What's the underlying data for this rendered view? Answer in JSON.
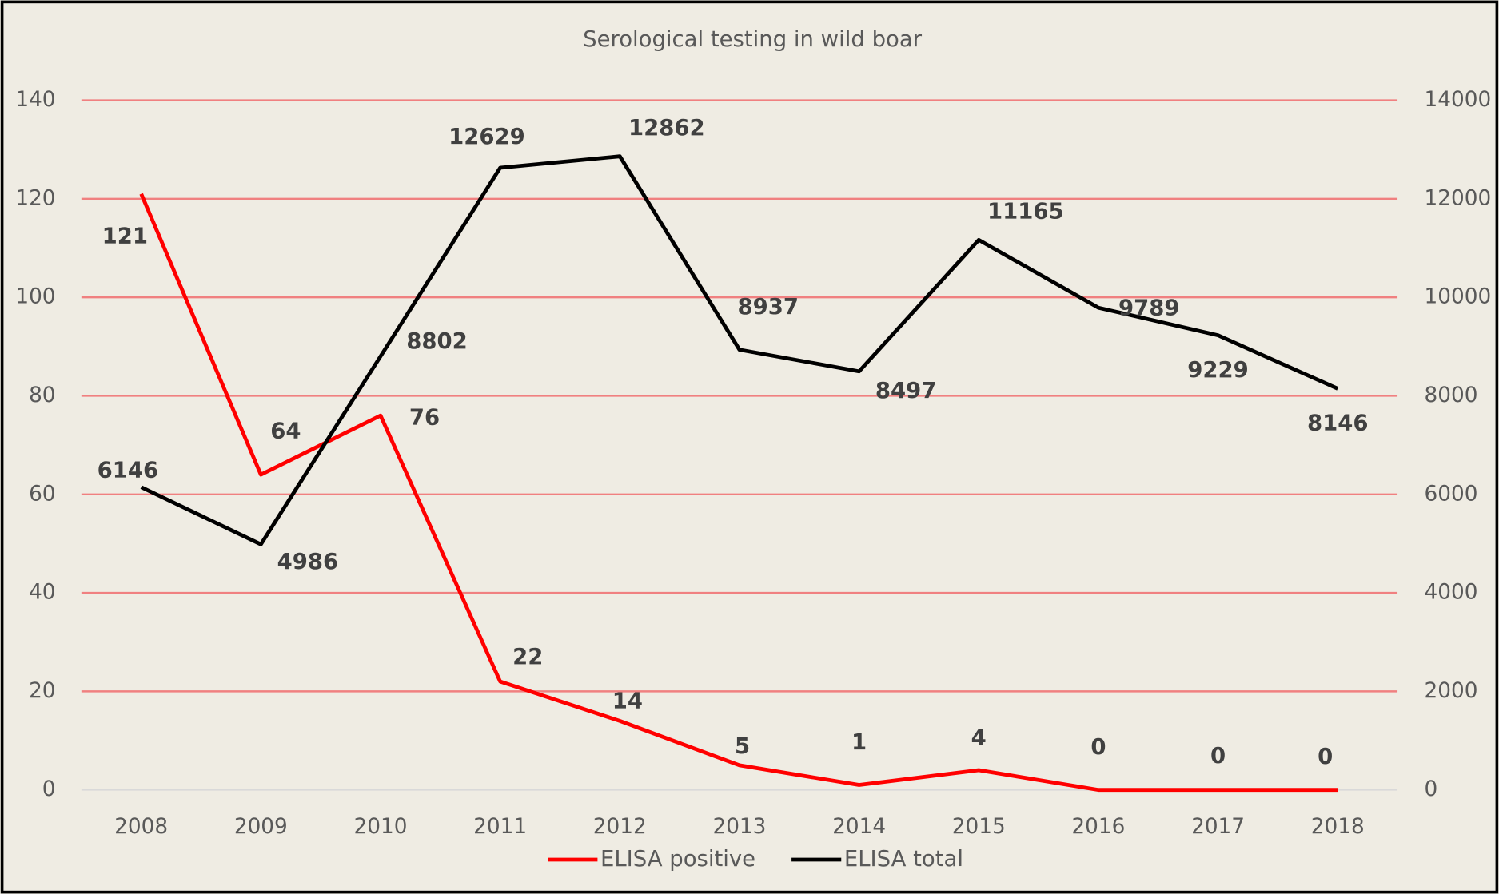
{
  "chart_data": {
    "type": "line",
    "title": "Serological testing in wild boar",
    "categories": [
      "2008",
      "2009",
      "2010",
      "2011",
      "2012",
      "2013",
      "2014",
      "2015",
      "2016",
      "2017",
      "2018"
    ],
    "series": [
      {
        "name": "ELISA positive",
        "color": "#ff0000",
        "values": [
          121,
          64,
          76,
          22,
          14,
          5,
          1,
          4,
          0,
          0,
          0
        ]
      },
      {
        "name": "ELISA total",
        "color": "#000000",
        "axis": "y2",
        "values": [
          6146,
          4986,
          8802,
          12629,
          12862,
          8937,
          8497,
          11165,
          9789,
          9229,
          8146
        ]
      }
    ],
    "ylim": [
      0,
      140
    ],
    "yticks": [
      0,
      20,
      40,
      60,
      80,
      100,
      120,
      140
    ],
    "y2lim": [
      0,
      14000
    ],
    "y2ticks": [
      0,
      2000,
      4000,
      6000,
      8000,
      10000,
      12000,
      14000
    ],
    "grid": true,
    "grid_color": "#f08080",
    "legend": "bottom"
  }
}
